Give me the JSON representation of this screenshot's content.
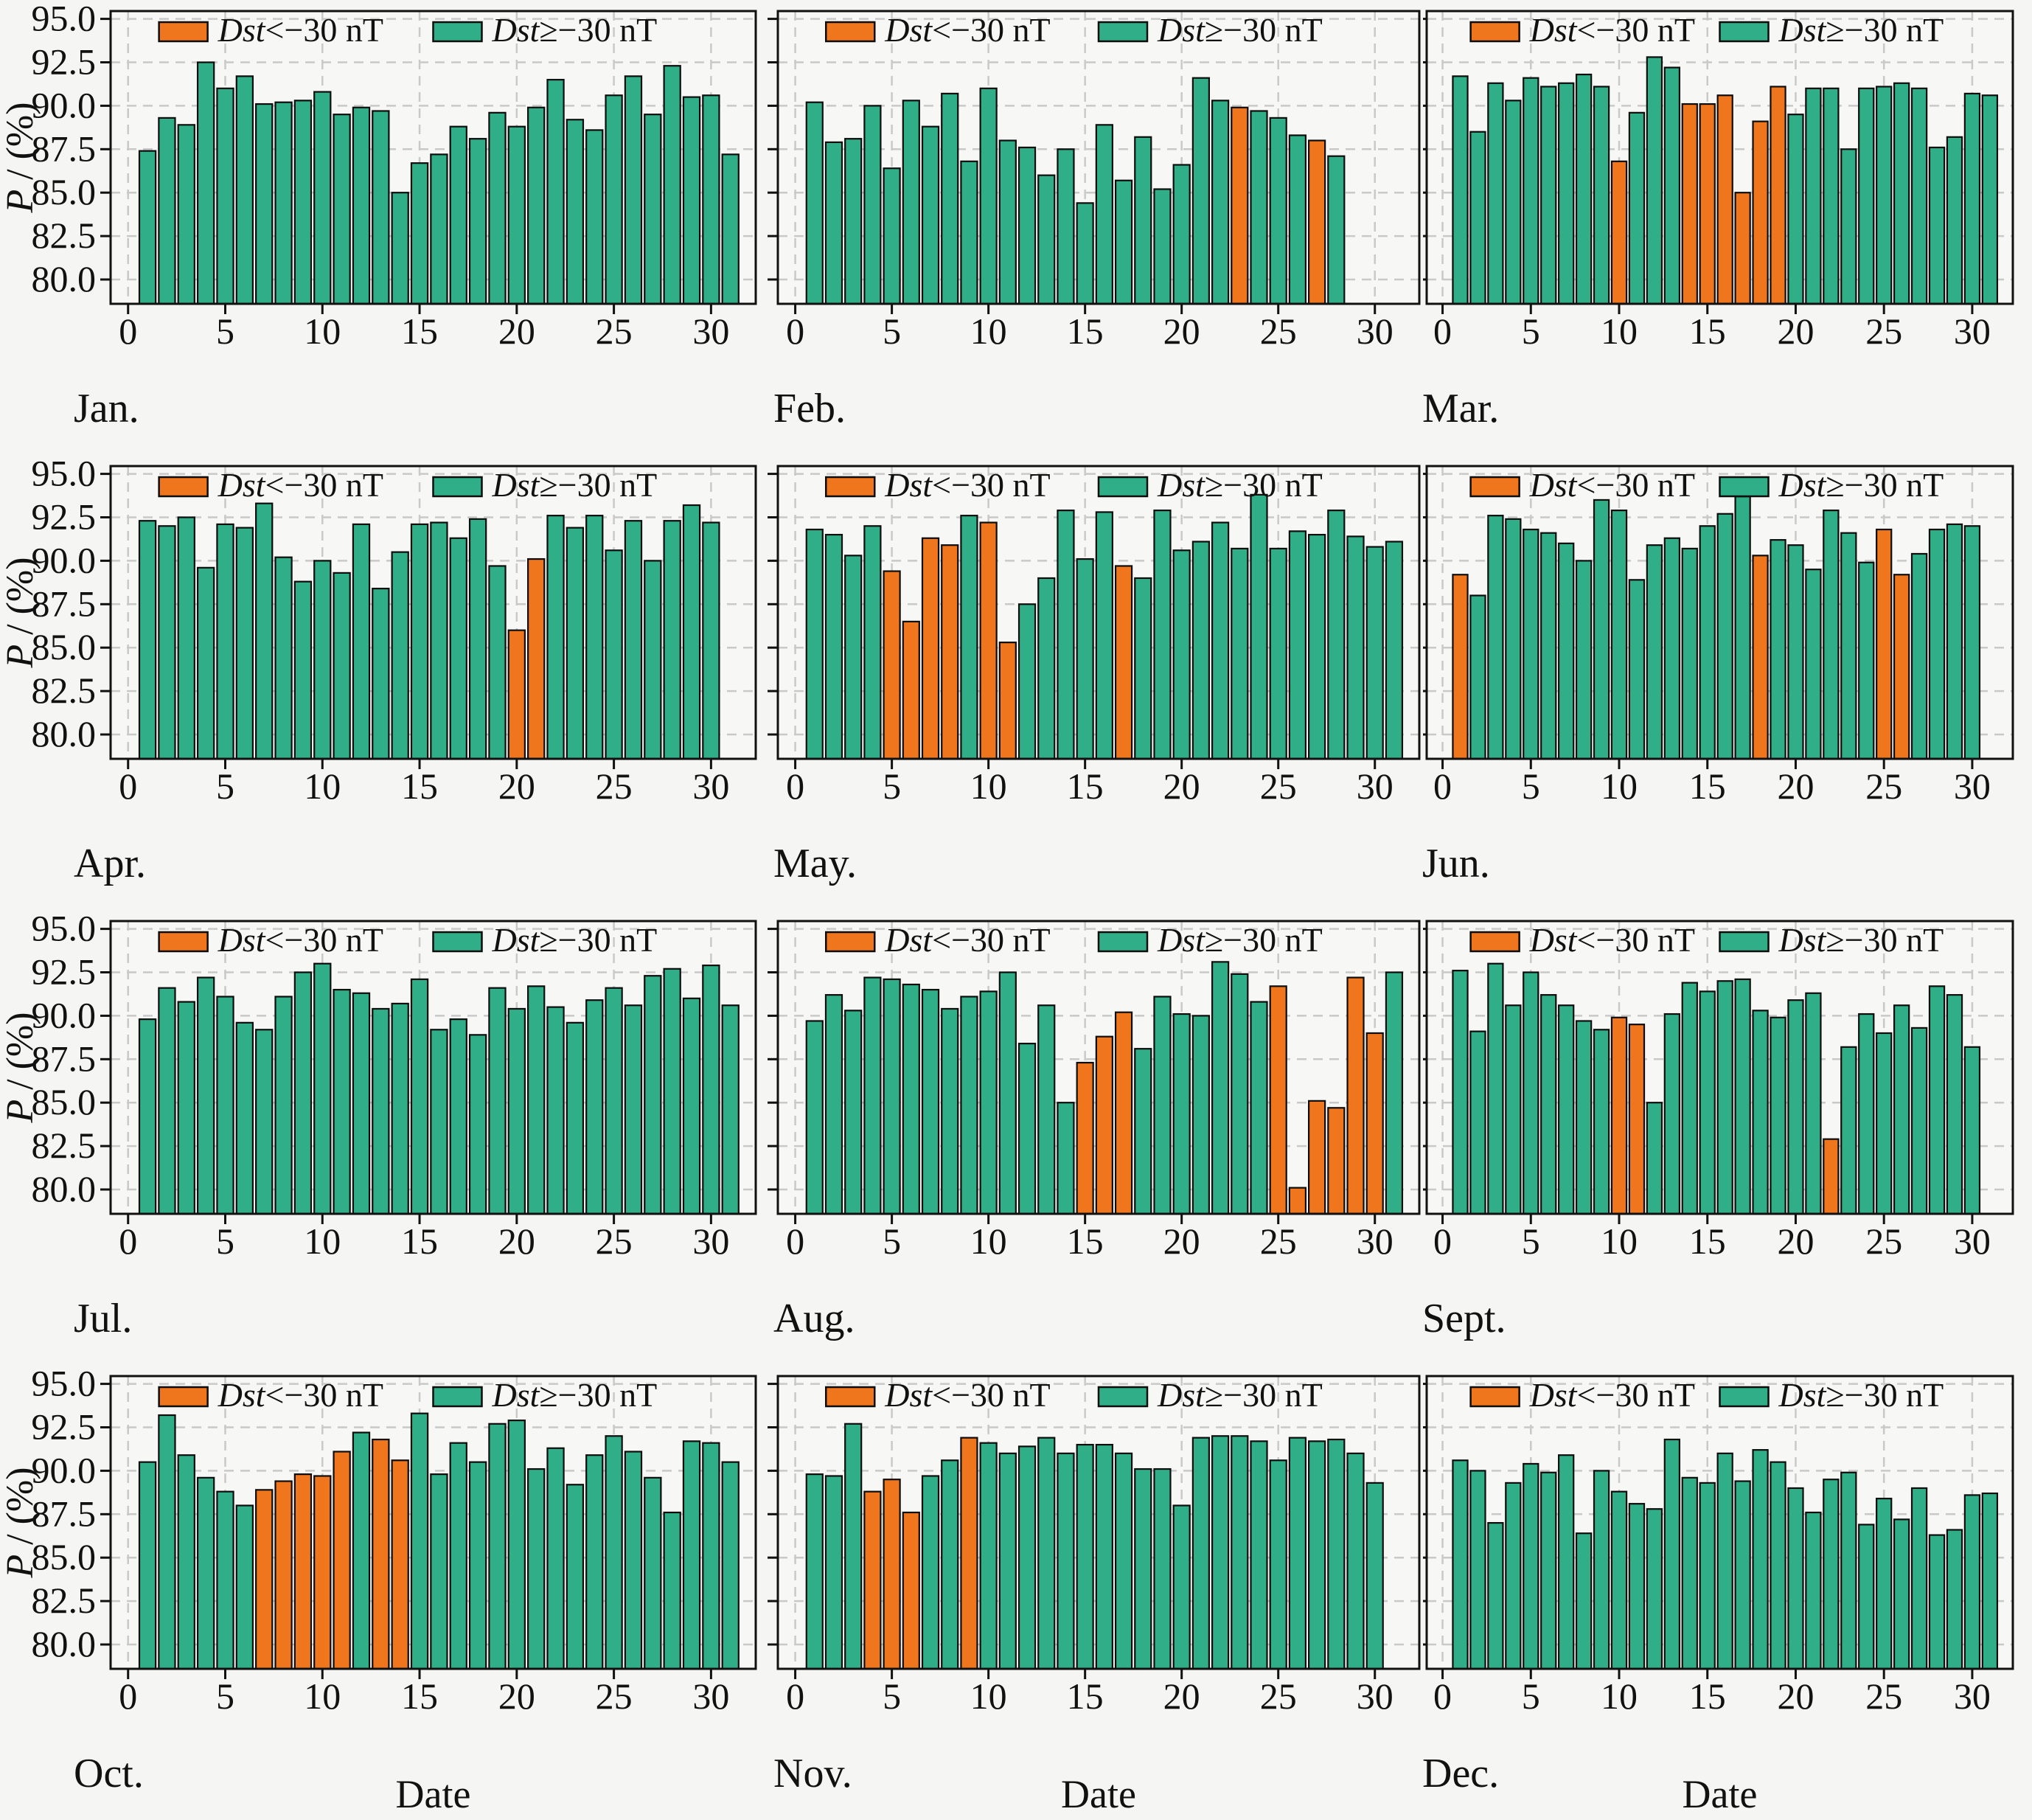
{
  "figure": {
    "y_axis_label_italic": "P",
    "y_axis_label_rest": " / (%)",
    "x_axis_label": "Date",
    "legend": {
      "storm_italic": "Dst",
      "storm_rest": "<−30 nT",
      "quiet_italic": "Dst",
      "quiet_rest": "≥−30 nT"
    },
    "y_ticks": [
      "95.0",
      "92.5",
      "90.0",
      "87.5",
      "85.0",
      "82.5",
      "80.0"
    ],
    "x_ticks": [
      "0",
      "5",
      "10",
      "15",
      "20",
      "25",
      "30"
    ],
    "colors": {
      "storm": "#F0761D",
      "quiet": "#2FAE87",
      "grid": "#c9c9c9",
      "frame": "#111111",
      "background": "#f5f5f4",
      "plot_background": "#f7f7f5"
    }
  },
  "chart_data": [
    {
      "type": "bar",
      "month_label": "Jan.",
      "ylabel": "P / (%)",
      "ylim": [
        78.6,
        95.45
      ],
      "grid": true,
      "values": [
        87.4,
        89.3,
        88.9,
        92.5,
        91.0,
        91.7,
        90.1,
        90.2,
        90.3,
        90.8,
        89.5,
        89.9,
        89.7,
        85.0,
        86.7,
        87.2,
        88.8,
        88.1,
        89.6,
        88.8,
        89.9,
        91.5,
        89.2,
        88.6,
        90.6,
        91.7,
        89.5,
        92.3,
        90.5,
        90.6,
        87.2
      ],
      "storm_days": []
    },
    {
      "type": "bar",
      "month_label": "Feb.",
      "ylabel": "P / (%)",
      "ylim": [
        78.6,
        95.45
      ],
      "grid": true,
      "values": [
        90.2,
        87.9,
        88.1,
        90.0,
        86.4,
        90.3,
        88.8,
        90.7,
        86.8,
        91.0,
        88.0,
        87.6,
        86.0,
        87.5,
        84.4,
        88.9,
        85.7,
        88.2,
        85.2,
        86.6,
        91.6,
        90.3,
        89.9,
        89.7,
        89.3,
        88.3,
        88.0,
        87.1
      ],
      "storm_days": [
        23,
        27
      ]
    },
    {
      "type": "bar",
      "month_label": "Mar.",
      "ylabel": "P / (%)",
      "ylim": [
        78.6,
        95.45
      ],
      "grid": true,
      "values": [
        91.7,
        88.5,
        91.3,
        90.3,
        91.6,
        91.1,
        91.3,
        91.8,
        91.1,
        86.8,
        89.6,
        92.8,
        92.2,
        90.1,
        90.1,
        90.6,
        85.0,
        89.1,
        91.1,
        89.5,
        91.0,
        91.0,
        87.5,
        91.0,
        91.1,
        91.3,
        91.0,
        87.6,
        88.2,
        90.7,
        90.6
      ],
      "storm_days": [
        10,
        14,
        15,
        16,
        17,
        18,
        19
      ]
    },
    {
      "type": "bar",
      "month_label": "Apr.",
      "ylabel": "P / (%)",
      "ylim": [
        78.6,
        95.45
      ],
      "grid": true,
      "values": [
        92.3,
        92.0,
        92.5,
        89.6,
        92.1,
        91.9,
        93.3,
        90.2,
        88.8,
        90.0,
        89.3,
        92.1,
        88.4,
        90.5,
        92.1,
        92.2,
        91.3,
        92.4,
        89.7,
        86.0,
        90.1,
        92.6,
        91.9,
        92.6,
        90.6,
        92.3,
        90.0,
        92.3,
        93.2,
        92.2
      ],
      "storm_days": [
        20,
        21
      ]
    },
    {
      "type": "bar",
      "month_label": "May.",
      "ylabel": "P / (%)",
      "ylim": [
        78.6,
        95.45
      ],
      "grid": true,
      "values": [
        91.8,
        91.5,
        90.3,
        92.0,
        89.4,
        86.5,
        91.3,
        90.9,
        92.6,
        92.2,
        85.3,
        87.5,
        89.0,
        92.9,
        90.1,
        92.8,
        89.7,
        89.0,
        92.9,
        90.6,
        91.1,
        92.2,
        90.7,
        93.8,
        90.7,
        91.7,
        91.5,
        92.9,
        91.4,
        90.8,
        91.1
      ],
      "storm_days": [
        5,
        6,
        7,
        8,
        10,
        11,
        17
      ]
    },
    {
      "type": "bar",
      "month_label": "Jun.",
      "ylabel": "P / (%)",
      "ylim": [
        78.6,
        95.45
      ],
      "grid": true,
      "values": [
        89.2,
        88.0,
        92.6,
        92.4,
        91.8,
        91.6,
        91.0,
        90.0,
        93.5,
        92.9,
        88.9,
        90.9,
        91.3,
        90.7,
        92.0,
        92.7,
        93.7,
        90.3,
        91.2,
        90.9,
        89.5,
        92.9,
        91.6,
        89.9,
        91.8,
        89.2,
        90.4,
        91.8,
        92.1,
        92.0
      ],
      "storm_days": [
        1,
        18,
        25,
        26
      ]
    },
    {
      "type": "bar",
      "month_label": "Jul.",
      "ylabel": "P / (%)",
      "ylim": [
        78.6,
        95.45
      ],
      "grid": true,
      "values": [
        89.8,
        91.6,
        90.8,
        92.2,
        91.1,
        89.6,
        89.2,
        91.1,
        92.5,
        93.0,
        91.5,
        91.3,
        90.4,
        90.7,
        92.1,
        89.2,
        89.8,
        88.9,
        91.6,
        90.4,
        91.7,
        90.5,
        89.6,
        90.9,
        91.6,
        90.6,
        92.3,
        92.7,
        91.0,
        92.9,
        90.6
      ],
      "storm_days": []
    },
    {
      "type": "bar",
      "month_label": "Aug.",
      "ylabel": "P / (%)",
      "ylim": [
        78.6,
        95.45
      ],
      "grid": true,
      "values": [
        89.7,
        91.2,
        90.3,
        92.2,
        92.1,
        91.8,
        91.5,
        90.4,
        91.1,
        91.4,
        92.5,
        88.4,
        90.6,
        85.0,
        87.3,
        88.8,
        90.2,
        88.1,
        91.1,
        90.1,
        90.0,
        93.1,
        92.4,
        90.8,
        91.7,
        80.1,
        85.1,
        84.7,
        92.2,
        89.0,
        92.5
      ],
      "storm_days": [
        15,
        16,
        17,
        25,
        26,
        27,
        28,
        29,
        30
      ]
    },
    {
      "type": "bar",
      "month_label": "Sept.",
      "ylabel": "P / (%)",
      "ylim": [
        78.6,
        95.45
      ],
      "grid": true,
      "values": [
        92.6,
        89.1,
        93.0,
        90.6,
        92.5,
        91.2,
        90.6,
        89.7,
        89.2,
        89.9,
        89.5,
        85.0,
        90.1,
        91.9,
        91.4,
        92.0,
        92.1,
        90.3,
        89.9,
        90.9,
        91.3,
        82.9,
        88.2,
        90.1,
        89.0,
        90.6,
        89.3,
        91.7,
        91.2,
        88.2
      ],
      "storm_days": [
        10,
        11,
        22
      ]
    },
    {
      "type": "bar",
      "month_label": "Oct.",
      "ylabel": "P / (%)",
      "ylim": [
        78.6,
        95.45
      ],
      "grid": true,
      "values": [
        90.5,
        93.2,
        90.9,
        89.6,
        88.8,
        88.0,
        88.9,
        89.4,
        89.8,
        89.7,
        91.1,
        92.2,
        91.8,
        90.6,
        93.3,
        89.8,
        91.6,
        90.5,
        92.7,
        92.9,
        90.1,
        91.3,
        89.2,
        90.9,
        92.0,
        91.1,
        89.6,
        87.6,
        91.7,
        91.6,
        90.5
      ],
      "storm_days": [
        7,
        8,
        9,
        10,
        11,
        13,
        14
      ]
    },
    {
      "type": "bar",
      "month_label": "Nov.",
      "ylabel": "P / (%)",
      "ylim": [
        78.6,
        95.45
      ],
      "grid": true,
      "values": [
        89.8,
        89.7,
        92.7,
        88.8,
        89.5,
        87.6,
        89.7,
        90.6,
        91.9,
        91.6,
        91.0,
        91.4,
        91.9,
        91.0,
        91.5,
        91.5,
        91.0,
        90.1,
        90.1,
        88.0,
        91.9,
        92.0,
        92.0,
        91.7,
        90.6,
        91.9,
        91.7,
        91.8,
        91.0,
        89.3
      ],
      "storm_days": [
        4,
        5,
        6,
        9
      ]
    },
    {
      "type": "bar",
      "month_label": "Dec.",
      "ylabel": "P / (%)",
      "ylim": [
        78.6,
        95.45
      ],
      "grid": true,
      "values": [
        90.6,
        90.0,
        87.0,
        89.3,
        90.4,
        89.9,
        90.9,
        86.4,
        90.0,
        88.8,
        88.1,
        87.8,
        91.8,
        89.6,
        89.3,
        91.0,
        89.4,
        91.2,
        90.5,
        89.0,
        87.6,
        89.5,
        89.9,
        86.9,
        88.4,
        87.2,
        89.0,
        86.3,
        86.6,
        88.6,
        88.7
      ],
      "storm_days": []
    }
  ]
}
